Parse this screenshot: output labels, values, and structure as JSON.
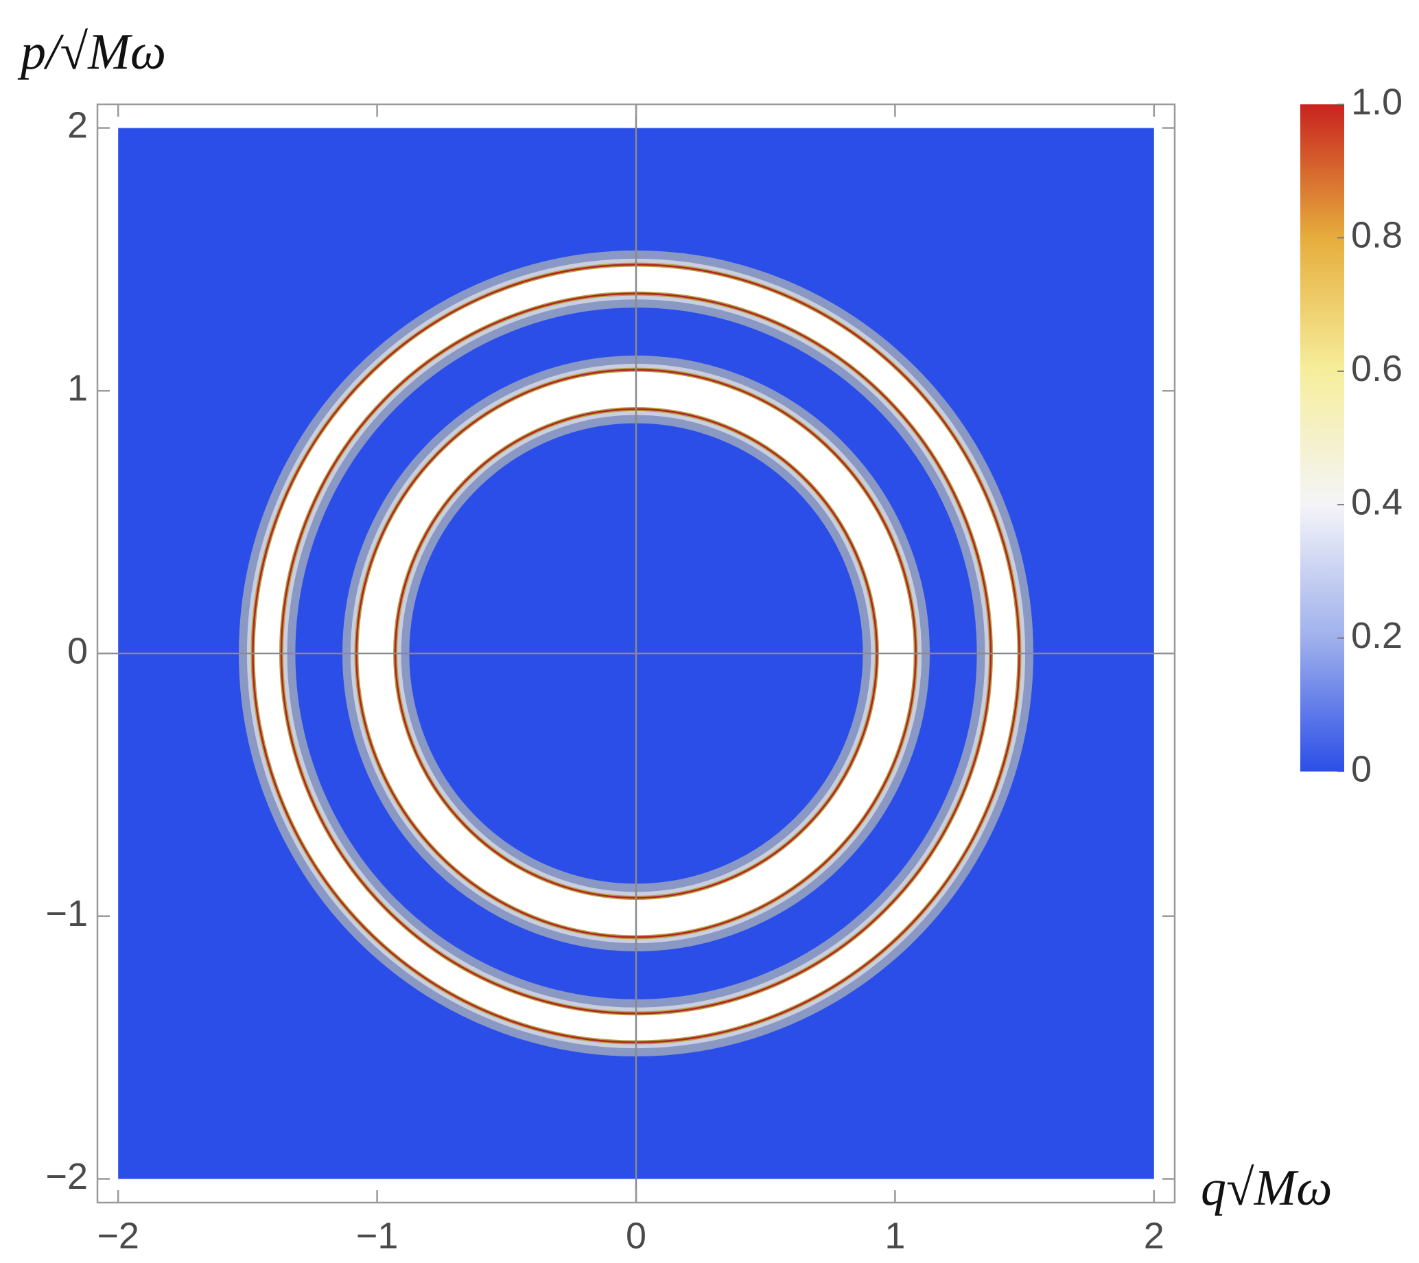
{
  "chart_data": {
    "type": "density",
    "x_label": "q√Mω",
    "y_label": "p/√Mω",
    "xlim": [
      -2.08,
      2.08
    ],
    "ylim": [
      -2.09,
      2.09
    ],
    "xticks": [
      {
        "value": -2,
        "label": "−2"
      },
      {
        "value": -1,
        "label": "−1"
      },
      0,
      1,
      2
    ],
    "yticks": [
      {
        "value": -2,
        "label": "−2"
      },
      {
        "value": -1,
        "label": "−1"
      },
      0,
      1,
      2
    ],
    "data_range": [
      -2,
      2
    ],
    "background_color": "#2b4ee8",
    "rings": [
      {
        "inner": 1.37,
        "outer": 1.48,
        "color": "#ffffff"
      },
      {
        "inner": 0.93,
        "outer": 1.08,
        "color": "#ffffff"
      }
    ],
    "clim": [
      0,
      1
    ],
    "colorbar": {
      "ticks": [
        0,
        0.2,
        0.4,
        0.6,
        0.8,
        {
          "value": 1,
          "label": "1.0"
        }
      ],
      "colors": [
        "#2b4ee8",
        "#9fb0ec",
        "#f4f4f8",
        "#f6ee9c",
        "#e6ad3c",
        "#c8231f"
      ]
    }
  }
}
